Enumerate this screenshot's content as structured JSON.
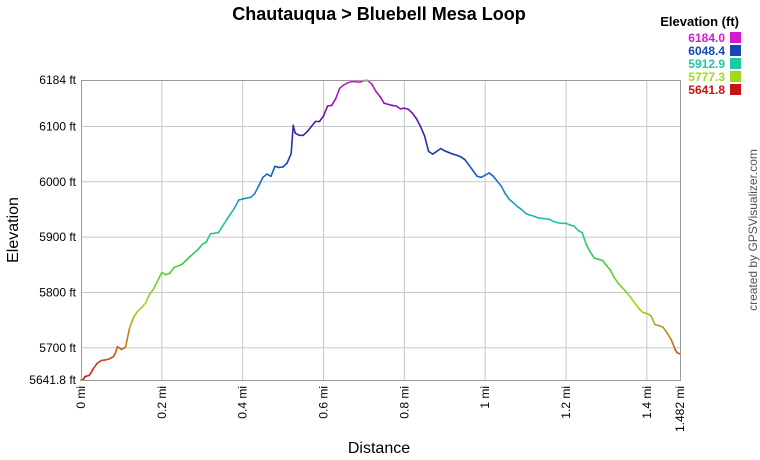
{
  "chart_data": {
    "type": "line",
    "title": "Chautauqua > Bluebell Mesa Loop",
    "xlabel": "Distance",
    "ylabel": "Elevation",
    "credit": "created by GPSVisualizer.com",
    "xlim": [
      0,
      1.482
    ],
    "ylim": [
      5641.8,
      6184
    ],
    "grid": true,
    "x_ticks": [
      {
        "value": 0,
        "label": "0 mi"
      },
      {
        "value": 0.2,
        "label": "0.2 mi"
      },
      {
        "value": 0.4,
        "label": "0.4 mi"
      },
      {
        "value": 0.6,
        "label": "0.6 mi"
      },
      {
        "value": 0.8,
        "label": "0.8 mi"
      },
      {
        "value": 1.0,
        "label": "1 mi"
      },
      {
        "value": 1.2,
        "label": "1.2 mi"
      },
      {
        "value": 1.4,
        "label": "1.4 mi"
      },
      {
        "value": 1.482,
        "label": "1.482 mi"
      }
    ],
    "y_ticks": [
      {
        "value": 5641.8,
        "label": "5641.8 ft"
      },
      {
        "value": 5700,
        "label": "5700 ft"
      },
      {
        "value": 5800,
        "label": "5800 ft"
      },
      {
        "value": 5900,
        "label": "5900 ft"
      },
      {
        "value": 6000,
        "label": "6000 ft"
      },
      {
        "value": 6100,
        "label": "6100 ft"
      },
      {
        "value": 6184,
        "label": "6184 ft"
      }
    ],
    "legend": {
      "title": "Elevation (ft)",
      "placement": "top-right",
      "items": [
        {
          "label": "6184.0",
          "color": "#d21ad2"
        },
        {
          "label": "6048.4",
          "color": "#1446b4"
        },
        {
          "label": "5912.9",
          "color": "#1ec8a0"
        },
        {
          "label": "5777.3",
          "color": "#a0dc14"
        },
        {
          "label": "5641.8",
          "color": "#c81414"
        }
      ]
    },
    "series": [
      {
        "x": [
          0,
          0.005,
          0.01,
          0.02,
          0.025,
          0.03,
          0.04,
          0.05,
          0.06,
          0.07,
          0.08,
          0.085,
          0.09,
          0.1,
          0.11,
          0.12,
          0.13,
          0.14,
          0.15,
          0.16,
          0.165,
          0.17,
          0.18,
          0.19,
          0.2,
          0.21,
          0.22,
          0.23,
          0.25,
          0.27,
          0.29,
          0.3,
          0.31,
          0.32,
          0.34,
          0.36,
          0.38,
          0.39,
          0.4,
          0.42,
          0.43,
          0.44,
          0.45,
          0.46,
          0.47,
          0.48,
          0.49,
          0.5,
          0.51,
          0.52,
          0.525,
          0.53,
          0.54,
          0.55,
          0.56,
          0.57,
          0.58,
          0.59,
          0.6,
          0.61,
          0.62,
          0.63,
          0.64,
          0.65,
          0.66,
          0.67,
          0.68,
          0.69,
          0.7,
          0.71,
          0.72,
          0.73,
          0.74,
          0.75,
          0.76,
          0.77,
          0.78,
          0.79,
          0.8,
          0.81,
          0.82,
          0.83,
          0.84,
          0.85,
          0.86,
          0.87,
          0.88,
          0.89,
          0.9,
          0.91,
          0.92,
          0.93,
          0.94,
          0.95,
          0.96,
          0.97,
          0.98,
          0.99,
          1.0,
          1.01,
          1.02,
          1.03,
          1.04,
          1.05,
          1.06,
          1.07,
          1.08,
          1.09,
          1.1,
          1.11,
          1.12,
          1.13,
          1.14,
          1.15,
          1.16,
          1.17,
          1.18,
          1.19,
          1.2,
          1.21,
          1.22,
          1.23,
          1.24,
          1.25,
          1.26,
          1.27,
          1.28,
          1.29,
          1.3,
          1.31,
          1.32,
          1.33,
          1.34,
          1.35,
          1.36,
          1.37,
          1.38,
          1.39,
          1.4,
          1.41,
          1.42,
          1.43,
          1.44,
          1.45,
          1.46,
          1.47,
          1.475,
          1.482
        ],
        "y": [
          5641.8,
          5642,
          5648,
          5650,
          5655,
          5662,
          5672,
          5677,
          5678,
          5680,
          5684,
          5690,
          5702,
          5697,
          5701,
          5735,
          5755,
          5766,
          5773,
          5781,
          5790,
          5797,
          5807,
          5822,
          5836,
          5832,
          5835,
          5845,
          5851,
          5865,
          5878,
          5887,
          5891,
          5906,
          5908,
          5931,
          5953,
          5967,
          5969,
          5972,
          5979,
          5993,
          6008,
          6014,
          6010,
          6028,
          6026,
          6027,
          6034,
          6051,
          6102,
          6088,
          6084,
          6084,
          6091,
          6100,
          6109,
          6109,
          6119,
          6137,
          6138,
          6150,
          6169,
          6175,
          6179,
          6181,
          6181,
          6180,
          6183,
          6183,
          6176,
          6163,
          6154,
          6142,
          6140,
          6138,
          6137,
          6132,
          6133,
          6131,
          6124,
          6114,
          6100,
          6083,
          6055,
          6050,
          6055,
          6060,
          6056,
          6053,
          6050,
          6048,
          6045,
          6040,
          6030,
          6020,
          6010,
          6008,
          6012,
          6016,
          6010,
          6001,
          5992,
          5978,
          5968,
          5962,
          5955,
          5950,
          5943,
          5940,
          5938,
          5935,
          5934,
          5933,
          5932,
          5928,
          5926,
          5925,
          5925,
          5922,
          5920,
          5912,
          5908,
          5887,
          5873,
          5862,
          5860,
          5858,
          5849,
          5840,
          5826,
          5816,
          5808,
          5800,
          5791,
          5781,
          5771,
          5764,
          5762,
          5758,
          5742,
          5740,
          5737,
          5727,
          5715,
          5697,
          5691,
          5689
        ]
      }
    ]
  }
}
